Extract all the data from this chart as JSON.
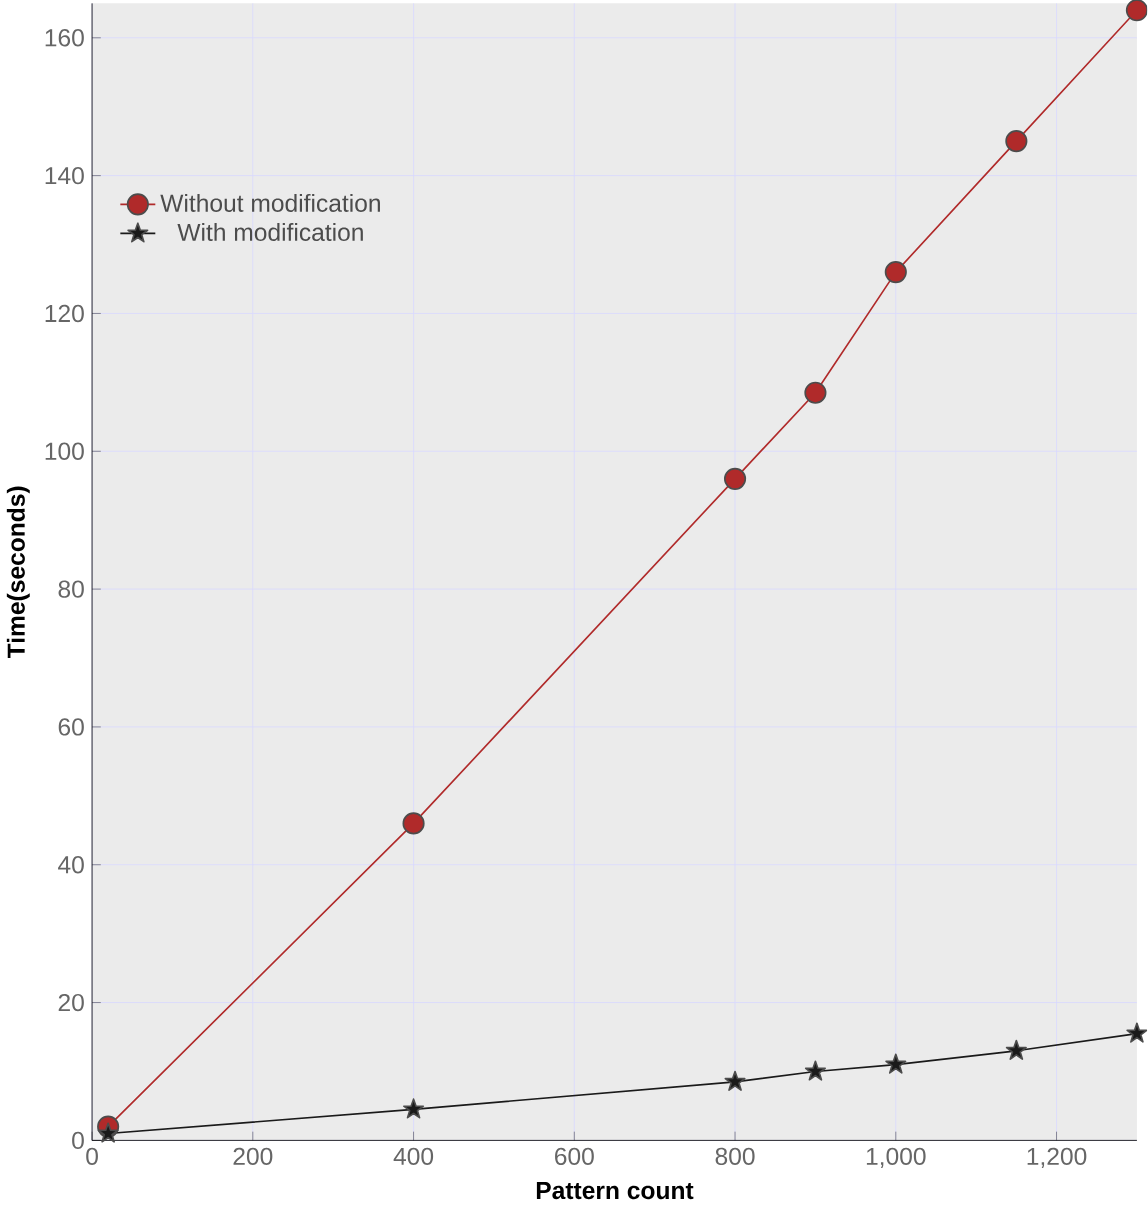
{
  "chart_data": {
    "type": "line",
    "xlabel": "Pattern count",
    "ylabel": "Time(seconds)",
    "xlim": [
      0,
      1300
    ],
    "ylim": [
      0,
      165
    ],
    "xticks": [
      0,
      200,
      400,
      600,
      800,
      {
        "value": 1000,
        "label": "1,000"
      },
      {
        "value": 1200,
        "label": "1,200"
      }
    ],
    "yticks": [
      0,
      20,
      40,
      60,
      80,
      100,
      120,
      140,
      160
    ],
    "grid": true,
    "legend": "top left",
    "series": [
      {
        "name": "Without modification",
        "color": "#b02a2a",
        "marker": "circle",
        "x": [
          20,
          400,
          800,
          900,
          1000,
          1150,
          1300
        ],
        "values": [
          2,
          46,
          96,
          108.5,
          126,
          145,
          164
        ]
      },
      {
        "name": "With modification",
        "color": "#1a1a1a",
        "marker": "star",
        "x": [
          20,
          400,
          800,
          900,
          1000,
          1150,
          1300
        ],
        "values": [
          1,
          4.5,
          8.5,
          10,
          11,
          13,
          15.5
        ]
      }
    ]
  }
}
